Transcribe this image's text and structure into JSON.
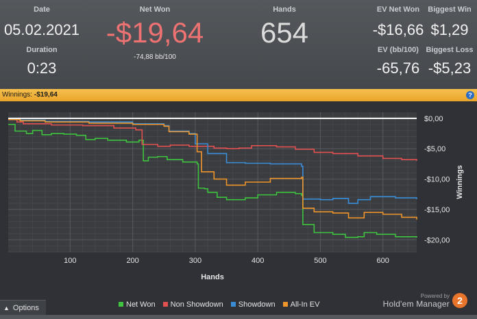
{
  "stats": {
    "date": {
      "label": "Date",
      "value": "05.02.2021"
    },
    "duration": {
      "label": "Duration",
      "value": "0:23"
    },
    "net_won": {
      "label": "Net Won",
      "value": "-$19,64",
      "sub": "-74,88 bb/100"
    },
    "hands": {
      "label": "Hands",
      "value": "654"
    },
    "ev_net_won": {
      "label": "EV Net Won",
      "value": "-$16,66"
    },
    "ev_bb100": {
      "label": "EV (bb/100)",
      "value": "-65,76"
    },
    "biggest_win": {
      "label": "Biggest Win",
      "value": "$1,29"
    },
    "biggest_loss": {
      "label": "Biggest Loss",
      "value": "-$5,23"
    }
  },
  "winbar": {
    "label": "Winnings:",
    "amount": "-$19,64",
    "help_icon": "question-icon"
  },
  "chart_data": {
    "type": "line",
    "xlabel": "Hands",
    "ylabel": "Winnings",
    "xlim": [
      1,
      654
    ],
    "ylim": [
      -22,
      1
    ],
    "x_ticks": [
      100,
      200,
      300,
      400,
      500,
      600
    ],
    "y_ticks": [
      0,
      -5,
      -10,
      -15,
      -20
    ],
    "y_tick_labels": [
      "$0,00",
      "-$5,00",
      "-$10,00",
      "-$15,00",
      "-$20,00"
    ],
    "grid": true,
    "zero_line": true,
    "legend_position": "bottom",
    "series": [
      {
        "name": "Net Won",
        "color": "#3ec43e",
        "points": [
          [
            1,
            -1
          ],
          [
            12,
            -2.1
          ],
          [
            30,
            -2.5
          ],
          [
            40,
            -2
          ],
          [
            55,
            -2.7
          ],
          [
            70,
            -2.5
          ],
          [
            90,
            -2.6
          ],
          [
            110,
            -2.8
          ],
          [
            125,
            -3.5
          ],
          [
            140,
            -3.3
          ],
          [
            160,
            -3.6
          ],
          [
            190,
            -3.9
          ],
          [
            210,
            -3.6
          ],
          [
            217,
            -7
          ],
          [
            225,
            -6.4
          ],
          [
            240,
            -6.3
          ],
          [
            255,
            -6.8
          ],
          [
            280,
            -7.2
          ],
          [
            303,
            -7.5
          ],
          [
            305,
            -11.5
          ],
          [
            315,
            -11.6
          ],
          [
            320,
            -12.2
          ],
          [
            335,
            -13
          ],
          [
            350,
            -13.4
          ],
          [
            380,
            -13.1
          ],
          [
            400,
            -12.6
          ],
          [
            430,
            -12.2
          ],
          [
            460,
            -12.4
          ],
          [
            470,
            -12.7
          ],
          [
            472,
            -17.5
          ],
          [
            490,
            -18.8
          ],
          [
            520,
            -19.1
          ],
          [
            540,
            -19.6
          ],
          [
            560,
            -19.5
          ],
          [
            570,
            -18.8
          ],
          [
            590,
            -19.1
          ],
          [
            620,
            -19.5
          ],
          [
            654,
            -19.64
          ]
        ]
      },
      {
        "name": "Non Showdown",
        "color": "#e25050",
        "points": [
          [
            1,
            -0.1
          ],
          [
            12,
            -0.1
          ],
          [
            15,
            -0.6
          ],
          [
            25,
            -0.9
          ],
          [
            70,
            -1.1
          ],
          [
            120,
            -1.2
          ],
          [
            170,
            -1.6
          ],
          [
            205,
            -1.9
          ],
          [
            215,
            -4.3
          ],
          [
            240,
            -4.6
          ],
          [
            260,
            -4.4
          ],
          [
            290,
            -4.6
          ],
          [
            330,
            -4.9
          ],
          [
            350,
            -5
          ],
          [
            370,
            -4.9
          ],
          [
            390,
            -4.5
          ],
          [
            430,
            -4.7
          ],
          [
            460,
            -5.1
          ],
          [
            490,
            -5.6
          ],
          [
            520,
            -5.8
          ],
          [
            560,
            -6.2
          ],
          [
            600,
            -6.6
          ],
          [
            630,
            -6.8
          ],
          [
            654,
            -7
          ]
        ]
      },
      {
        "name": "Showdown",
        "color": "#3a8ed8",
        "points": [
          [
            1,
            -0.1
          ],
          [
            20,
            -0.3
          ],
          [
            60,
            -0.5
          ],
          [
            130,
            -0.6
          ],
          [
            200,
            -0.9
          ],
          [
            250,
            -1.2
          ],
          [
            258,
            -2.1
          ],
          [
            290,
            -2.5
          ],
          [
            300,
            -4.2
          ],
          [
            320,
            -5.8
          ],
          [
            350,
            -7.3
          ],
          [
            380,
            -7.4
          ],
          [
            420,
            -7.5
          ],
          [
            470,
            -7.9
          ],
          [
            472,
            -13.3
          ],
          [
            500,
            -13.4
          ],
          [
            520,
            -13.2
          ],
          [
            545,
            -14
          ],
          [
            560,
            -13.4
          ],
          [
            580,
            -12.9
          ],
          [
            620,
            -13.1
          ],
          [
            654,
            -13.3
          ]
        ]
      },
      {
        "name": "All-In EV",
        "color": "#f0952a",
        "points": [
          [
            1,
            -0.2
          ],
          [
            20,
            -0.4
          ],
          [
            60,
            -0.6
          ],
          [
            130,
            -0.8
          ],
          [
            200,
            -1
          ],
          [
            250,
            -1.3
          ],
          [
            258,
            -2.2
          ],
          [
            290,
            -2.6
          ],
          [
            303,
            -5.5
          ],
          [
            310,
            -8.8
          ],
          [
            330,
            -10
          ],
          [
            350,
            -11
          ],
          [
            380,
            -10.5
          ],
          [
            420,
            -9.9
          ],
          [
            470,
            -9.7
          ],
          [
            472,
            -14.8
          ],
          [
            490,
            -15.4
          ],
          [
            520,
            -15.6
          ],
          [
            545,
            -16.4
          ],
          [
            570,
            -15.5
          ],
          [
            600,
            -15.8
          ],
          [
            630,
            -16.3
          ],
          [
            654,
            -16.66
          ]
        ]
      }
    ]
  },
  "footer": {
    "options_label": "Options",
    "options_icon": "caret-up-icon",
    "powered_by": "Powered by",
    "brand": "Hold'em Manager",
    "logo_text": "2"
  }
}
